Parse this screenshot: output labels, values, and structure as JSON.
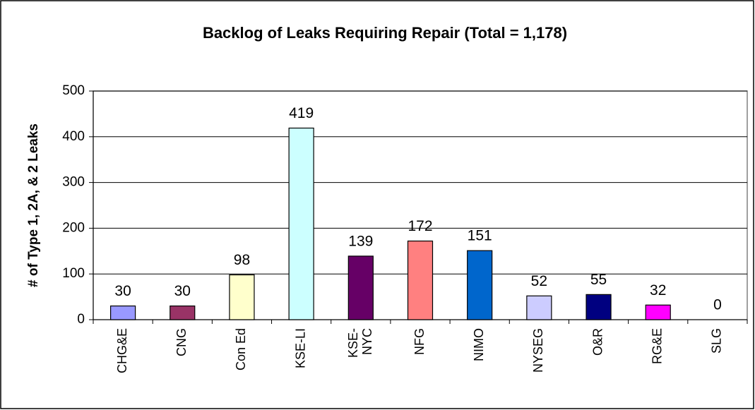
{
  "chart_data": {
    "type": "bar",
    "title": "Backlog of Leaks Requiring Repair (Total = 1,178)",
    "y_label": "# of Type 1, 2A, & 2 Leaks",
    "categories": [
      "CHG&E",
      "CNG",
      "Con Ed",
      "KSE-LI",
      "KSE-\nNYC",
      "NFG",
      "NIMO",
      "NYSEG",
      "O&R",
      "RG&E",
      "SLG"
    ],
    "values": [
      30,
      30,
      98,
      419,
      139,
      172,
      151,
      52,
      55,
      32,
      0
    ],
    "colors": [
      "#9999ff",
      "#993366",
      "#ffffcc",
      "#ccffff",
      "#660066",
      "#ff8080",
      "#0066cc",
      "#ccccff",
      "#000080",
      "#ff00ff",
      "#cccccc"
    ],
    "ylim": [
      0,
      500
    ],
    "yticks": [
      0,
      100,
      200,
      300,
      400,
      500
    ],
    "grid": true
  }
}
